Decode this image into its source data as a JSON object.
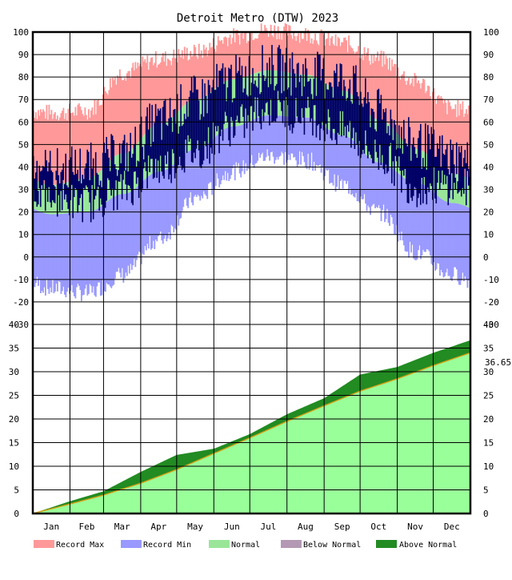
{
  "chart_data": [
    {
      "type": "area",
      "panel": "daily-temperature",
      "title": "Detroit Metro (DTW) 2023",
      "xlabel": "",
      "ylabel": "",
      "ylim": [
        -30,
        100
      ],
      "y_ticks": [
        100,
        90,
        80,
        70,
        60,
        50,
        40,
        30,
        20,
        10,
        0,
        -10,
        -20,
        -30
      ],
      "x_ticks": [
        "Jan",
        "Feb",
        "Mar",
        "Apr",
        "May",
        "Jun",
        "Jul",
        "Aug",
        "Sep",
        "Oct",
        "Nov",
        "Dec"
      ],
      "grid": true,
      "month_start_day": [
        0,
        31,
        59,
        90,
        120,
        151,
        181,
        212,
        243,
        273,
        304,
        334,
        365
      ],
      "record_max_monthly": [
        64,
        65,
        82,
        88,
        91,
        98,
        101,
        99,
        95,
        88,
        78,
        66
      ],
      "record_min_monthly": [
        -14,
        -16,
        -8,
        8,
        26,
        38,
        45,
        43,
        32,
        20,
        2,
        -8
      ],
      "normal_high_monthly": [
        32,
        35,
        46,
        59,
        70,
        79,
        83,
        81,
        74,
        61,
        48,
        37
      ],
      "normal_low_monthly": [
        19,
        20,
        28,
        38,
        48,
        58,
        63,
        62,
        54,
        42,
        33,
        24
      ],
      "observed_monthly": [
        {
          "month": "Jan",
          "high": 38,
          "low": 27
        },
        {
          "month": "Feb",
          "high": 40,
          "low": 24
        },
        {
          "month": "Mar",
          "high": 45,
          "low": 30
        },
        {
          "month": "Apr",
          "high": 60,
          "low": 40
        },
        {
          "month": "May",
          "high": 70,
          "low": 47
        },
        {
          "month": "Jun",
          "high": 79,
          "low": 58
        },
        {
          "month": "Jul",
          "high": 84,
          "low": 66
        },
        {
          "month": "Aug",
          "high": 81,
          "low": 63
        },
        {
          "month": "Sep",
          "high": 79,
          "low": 56
        },
        {
          "month": "Oct",
          "high": 64,
          "low": 45
        },
        {
          "month": "Nov",
          "high": 50,
          "low": 31
        },
        {
          "month": "Dec",
          "high": 44,
          "low": 32
        }
      ]
    },
    {
      "type": "area",
      "panel": "cumulative-precipitation",
      "title": "",
      "xlabel": "",
      "ylabel": "",
      "ylim": [
        0,
        40
      ],
      "y_ticks": [
        40,
        35,
        30,
        25,
        20,
        15,
        10,
        5,
        0
      ],
      "x_ticks": [
        "Jan",
        "Feb",
        "Mar",
        "Apr",
        "May",
        "Jun",
        "Jul",
        "Aug",
        "Sep",
        "Oct",
        "Nov",
        "Dec"
      ],
      "grid": true,
      "end_value_label": "36.65",
      "normal_cumulative_at_month_start": [
        0,
        2.0,
        3.9,
        6.4,
        9.3,
        12.7,
        16.0,
        19.5,
        22.8,
        25.9,
        28.5,
        31.3,
        34.0
      ],
      "observed_cumulative_at_month_start": [
        0,
        2.6,
        4.7,
        8.8,
        12.4,
        13.7,
        16.8,
        21.0,
        24.4,
        29.4,
        31.0,
        34.0,
        36.65
      ]
    }
  ],
  "legend": {
    "placement": "bottom",
    "items": [
      {
        "key": "record-max",
        "label": "Record Max",
        "color": "#ff9999"
      },
      {
        "key": "record-min",
        "label": "Record Min",
        "color": "#9999ff"
      },
      {
        "key": "normal",
        "label": "Normal",
        "color": "#99e699"
      },
      {
        "key": "below-normal",
        "label": "Below Normal",
        "color": "#b399b3"
      },
      {
        "key": "above-normal",
        "label": "Above Normal",
        "color": "#228b22"
      }
    ]
  },
  "colors": {
    "record_max": "#ff9999",
    "record_min": "#9999ff",
    "normal": "#99e699",
    "observed": "#000066",
    "precip_normal": "#99ff99",
    "precip_above": "#228b22",
    "precip_below": "#b399b3",
    "normal_line": "#d4a017"
  }
}
